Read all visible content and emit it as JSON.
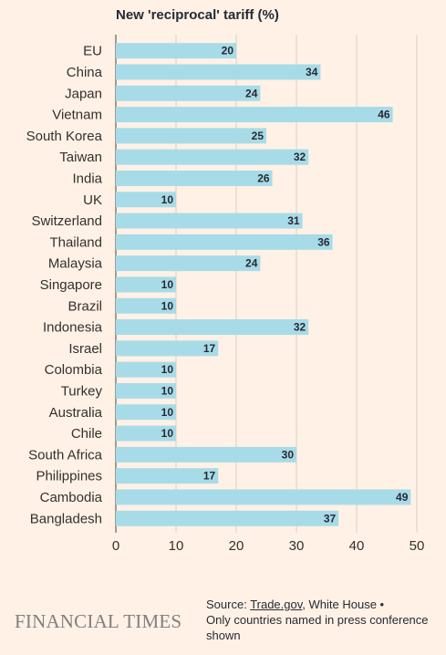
{
  "chart_data": {
    "type": "bar",
    "orientation": "horizontal",
    "title": "New 'reciprocal' tariff (%)",
    "categories": [
      "EU",
      "China",
      "Japan",
      "Vietnam",
      "South Korea",
      "Taiwan",
      "India",
      "UK",
      "Switzerland",
      "Thailand",
      "Malaysia",
      "Singapore",
      "Brazil",
      "Indonesia",
      "Israel",
      "Colombia",
      "Turkey",
      "Australia",
      "Chile",
      "South Africa",
      "Philippines",
      "Cambodia",
      "Bangladesh"
    ],
    "values": [
      20,
      34,
      24,
      46,
      25,
      32,
      26,
      10,
      31,
      36,
      24,
      10,
      10,
      32,
      17,
      10,
      10,
      10,
      10,
      30,
      17,
      49,
      37
    ],
    "xlim": [
      0,
      50
    ],
    "xticks": [
      0,
      10,
      20,
      30,
      40,
      50
    ],
    "grid": true,
    "bar_color": "#a8dbe8",
    "grid_color": "#d9cfc5"
  },
  "footer": {
    "logo": "FINANCIAL TIMES",
    "source_prefix": "Source: ",
    "source_link": "Trade.gov",
    "source_rest": ", White House •",
    "note": "Only countries named in press conference shown"
  }
}
